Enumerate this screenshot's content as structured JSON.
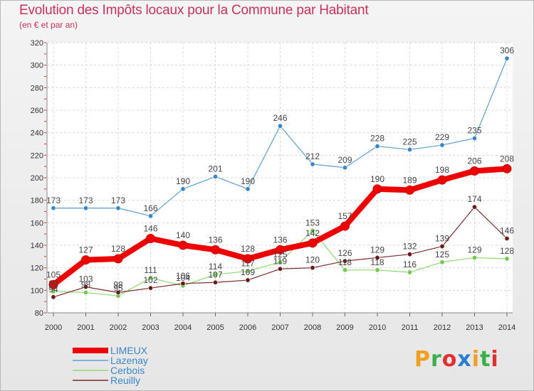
{
  "header": {
    "title": "Evolution des Impôts locaux pour la Commune par Habitant",
    "subtitle": "(en € et par an)"
  },
  "logo": {
    "text": "Proxiti",
    "colors": [
      "#f0a020",
      "#3ab04a",
      "#e03030",
      "#2a7fd0"
    ]
  },
  "chart_data": {
    "type": "line",
    "x": [
      "2000",
      "2001",
      "2002",
      "2003",
      "2004",
      "2005",
      "2006",
      "2007",
      "2008",
      "2009",
      "2010",
      "2011",
      "2012",
      "2013",
      "2014"
    ],
    "ylim": [
      80,
      320
    ],
    "yticks": [
      80,
      100,
      120,
      140,
      160,
      180,
      200,
      220,
      240,
      260,
      280,
      300,
      320
    ],
    "grid": true,
    "legend_position": "bottom-left",
    "series": [
      {
        "name": "Lazenay",
        "color": "#5a9fd0",
        "marker": "#3a86c8",
        "width": 1.2,
        "values": [
          173,
          173,
          173,
          166,
          190,
          201,
          190,
          246,
          212,
          209,
          228,
          225,
          229,
          235,
          306
        ]
      },
      {
        "name": "Cerbois",
        "color": "#90d870",
        "marker": "#70c850",
        "width": 1.2,
        "values": [
          99,
          98,
          95,
          111,
          104,
          114,
          117,
          125,
          153,
          118,
          118,
          116,
          125,
          129,
          128
        ]
      },
      {
        "name": "Reuilly",
        "color": "#7a2a2a",
        "marker": "#6a1a1a",
        "width": 1.2,
        "values": [
          94,
          103,
          98,
          102,
          106,
          107,
          109,
          119,
          120,
          126,
          129,
          132,
          139,
          174,
          146
        ]
      },
      {
        "name": "LIMEUX",
        "color": "#ee0000",
        "marker": "#ee0000",
        "width": 8,
        "values": [
          105,
          127,
          128,
          146,
          140,
          136,
          128,
          136,
          142,
          157,
          190,
          189,
          198,
          206,
          208
        ]
      }
    ],
    "legend_order": [
      "LIMEUX",
      "Lazenay",
      "Cerbois",
      "Reuilly"
    ]
  }
}
